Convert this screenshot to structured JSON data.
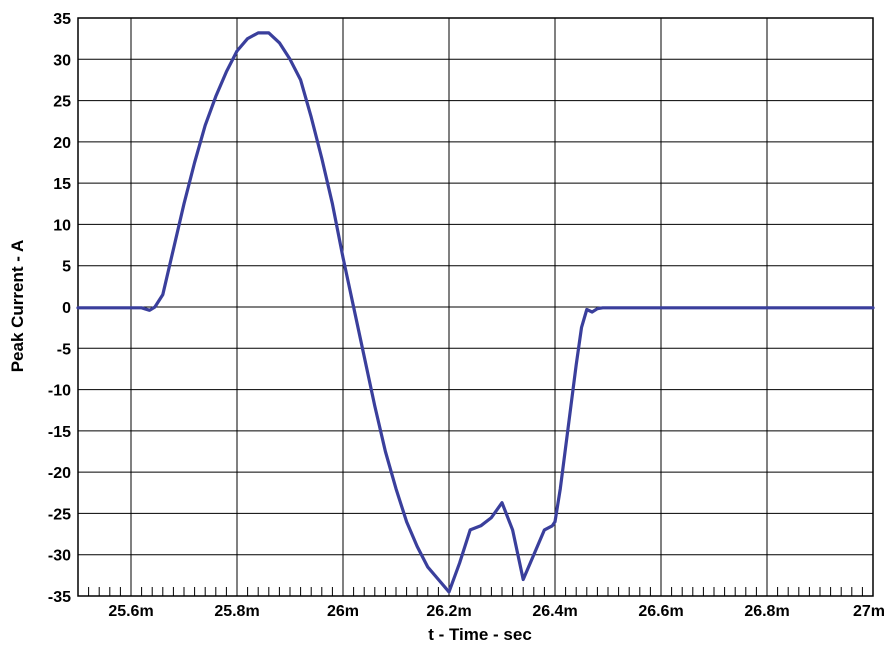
{
  "chart_data": {
    "type": "line",
    "title": "",
    "xlabel": "t - Time - sec",
    "ylabel": "Peak Current - A",
    "xlim": [
      0.0255,
      0.027
    ],
    "ylim": [
      -35,
      35
    ],
    "x_ticks": [
      0.0256,
      0.0258,
      0.026,
      0.0262,
      0.0264,
      0.0266,
      0.0268,
      0.027
    ],
    "x_tick_labels": [
      "25.6m",
      "25.8m",
      "26m",
      "26.2m",
      "26.4m",
      "26.6m",
      "26.8m",
      "27m"
    ],
    "y_ticks": [
      35,
      30,
      25,
      20,
      15,
      10,
      5,
      0,
      -5,
      -10,
      -15,
      -20,
      -25,
      -30,
      -35
    ],
    "y_tick_labels": [
      "35",
      "30",
      "25",
      "20",
      "15",
      "10",
      "5",
      "0",
      "-5",
      "-10",
      "-15",
      "-20",
      "-25",
      "-30",
      "-35"
    ],
    "grid": true,
    "line_color": "#3a3f9c",
    "series": [
      {
        "x": [
          0.0255,
          0.02556,
          0.02562,
          0.025635,
          0.025645,
          0.02566,
          0.02568,
          0.0257,
          0.02572,
          0.02574,
          0.02576,
          0.02578,
          0.0258,
          0.02582,
          0.02584,
          0.02586,
          0.02588,
          0.0259,
          0.02592,
          0.02594,
          0.02596,
          0.02598,
          0.026,
          0.02602,
          0.02604,
          0.02606,
          0.02608,
          0.0261,
          0.02612,
          0.02614,
          0.02616,
          0.02618,
          0.0262,
          0.02622,
          0.02624,
          0.02626,
          0.02628,
          0.0263,
          0.02632,
          0.02634,
          0.02636,
          0.02638,
          0.026395,
          0.0264,
          0.02641,
          0.02642,
          0.02643,
          0.02644,
          0.02645,
          0.02646,
          0.02647,
          0.02648,
          0.02649,
          0.0265,
          0.02651,
          0.02652,
          0.02654,
          0.02656,
          0.02658,
          0.0266,
          0.02662,
          0.02664,
          0.02666,
          0.02668,
          0.0267,
          0.02675,
          0.0268,
          0.0269,
          0.027
        ],
        "y": [
          -0.1,
          -0.1,
          -0.1,
          -0.4,
          0.0,
          1.5,
          7.0,
          12.5,
          17.5,
          22.0,
          25.5,
          28.5,
          31.0,
          32.5,
          33.2,
          33.2,
          32.0,
          30.0,
          27.5,
          23.0,
          18.0,
          12.5,
          6.0,
          0.0,
          -6.0,
          -12.0,
          -17.5,
          -22.0,
          -26.0,
          -29.0,
          -31.5,
          -33.0,
          -34.5,
          -31.0,
          -27.0,
          -26.5,
          -25.5,
          -23.7,
          -27.0,
          -33.0,
          -30.0,
          -27.0,
          -26.5,
          -26.0,
          -22.0,
          -17.0,
          -12.0,
          -7.0,
          -2.5,
          -0.3,
          -0.6,
          -0.2,
          -0.1,
          -0.1,
          -0.1,
          -0.1,
          -0.1,
          -0.1,
          -0.1,
          -0.1,
          -0.1,
          -0.1,
          -0.1,
          -0.1,
          -0.1,
          -0.1,
          -0.1,
          -0.1,
          -0.1
        ]
      }
    ]
  }
}
